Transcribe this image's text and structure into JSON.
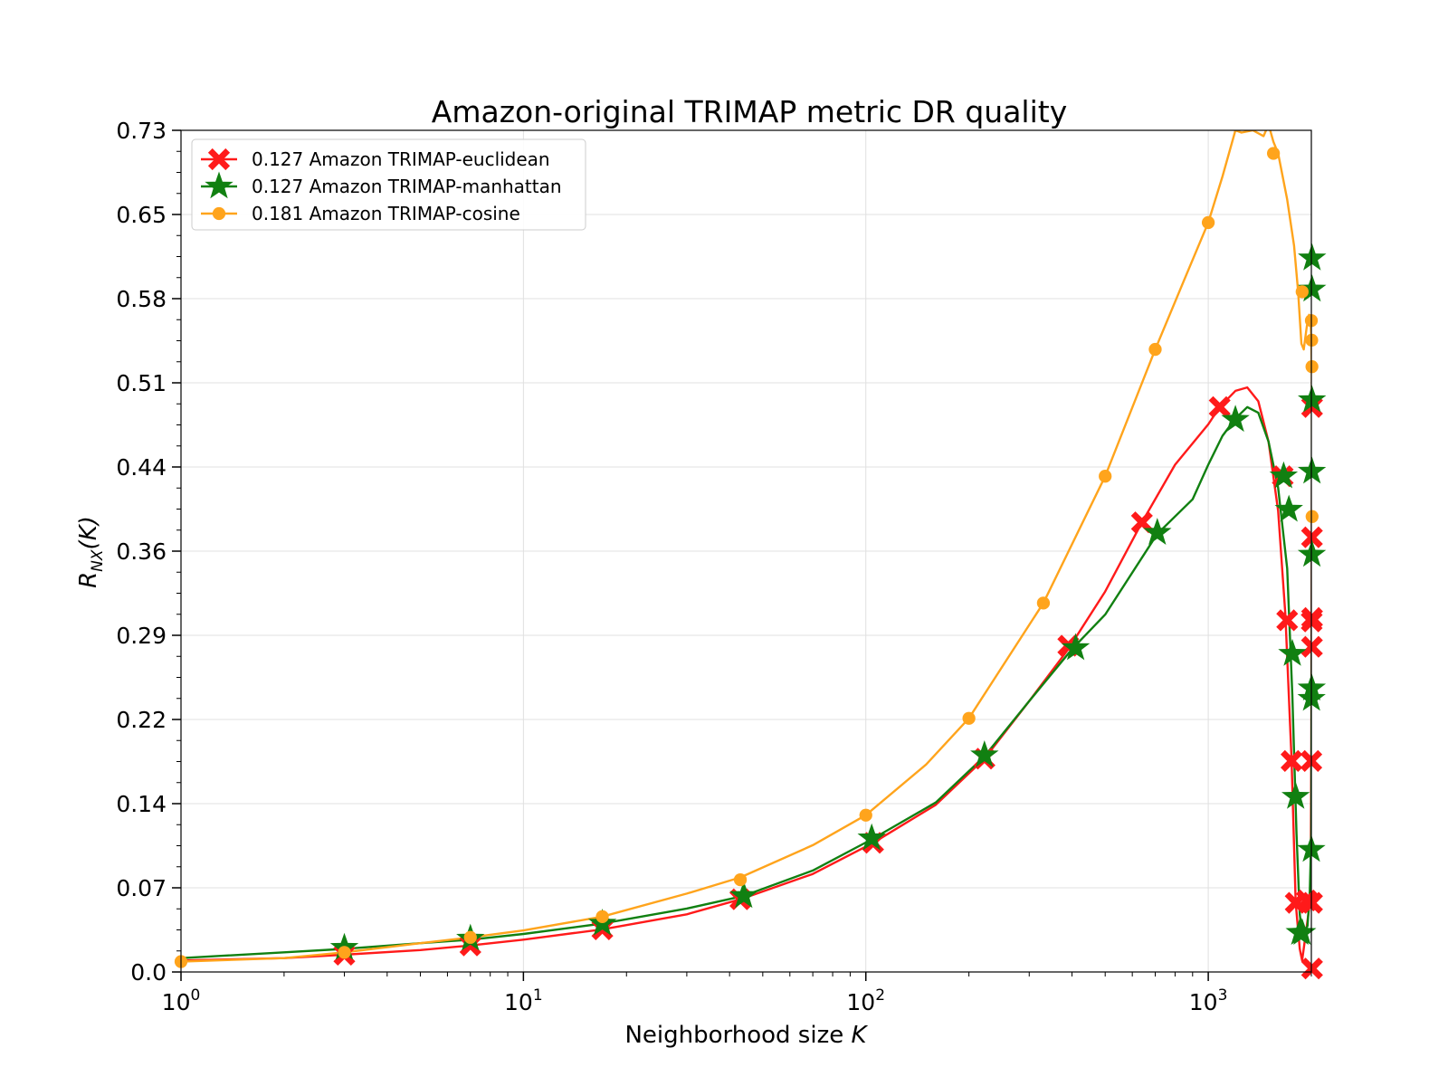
{
  "chart_data": {
    "type": "line",
    "title": "Amazon-original TRIMAP metric DR quality",
    "xlabel": {
      "prefix": "Neighborhood size ",
      "var": "K"
    },
    "ylabel": {
      "main": "R",
      "sub": "NX",
      "arg": "(K)"
    },
    "xscale": "log",
    "xlim": [
      1,
      2000
    ],
    "ylim": [
      0.0,
      0.73
    ],
    "yticks": [
      "0.0",
      "0.07",
      "0.14",
      "0.22",
      "0.29",
      "0.36",
      "0.44",
      "0.51",
      "0.58",
      "0.65",
      "0.73"
    ],
    "xticks": [
      {
        "base": "10",
        "exp": "0",
        "value": 1
      },
      {
        "base": "10",
        "exp": "1",
        "value": 10
      },
      {
        "base": "10",
        "exp": "2",
        "value": 100
      },
      {
        "base": "10",
        "exp": "3",
        "value": 1000
      }
    ],
    "grid": true,
    "legend_position": "top-left",
    "series": [
      {
        "name": "0.127 Amazon TRIMAP-euclidean",
        "color": "#ff1a1a",
        "marker": "x-filled",
        "x": [
          1,
          2,
          3,
          5,
          7,
          10,
          17,
          30,
          43,
          70,
          105,
          160,
          222,
          300,
          390,
          500,
          640,
          800,
          1000,
          1080,
          1200,
          1300,
          1400,
          1500,
          1600,
          1680,
          1750,
          1800,
          1850,
          1880,
          1910,
          1940,
          1970,
          1990,
          2000,
          2006,
          2010
        ],
        "y": [
          0.01,
          0.012,
          0.015,
          0.019,
          0.023,
          0.028,
          0.037,
          0.05,
          0.063,
          0.085,
          0.112,
          0.145,
          0.185,
          0.235,
          0.28,
          0.33,
          0.39,
          0.44,
          0.475,
          0.49,
          0.504,
          0.507,
          0.495,
          0.46,
          0.4,
          0.31,
          0.185,
          0.06,
          0.02,
          0.01,
          0.025,
          0.04,
          0.055,
          0.06,
          0.2,
          0.38,
          0.49
        ],
        "markers_x": [
          3,
          7,
          17,
          43,
          105,
          222,
          390,
          640,
          1080,
          1650,
          1700,
          1750,
          1800,
          1940,
          2000,
          2005,
          2008,
          2008,
          2010,
          2010,
          2010,
          2010
        ],
        "markers_y": [
          0.015,
          0.023,
          0.037,
          0.063,
          0.112,
          0.185,
          0.283,
          0.39,
          0.49,
          0.43,
          0.305,
          0.183,
          0.06,
          0.062,
          0.183,
          0.304,
          0.282,
          0.377,
          0.49,
          0.307,
          0.003,
          0.06
        ]
      },
      {
        "name": "0.127 Amazon TRIMAP-manhattan",
        "color": "#118011",
        "marker": "star",
        "x": [
          1,
          2,
          3,
          5,
          7,
          10,
          17,
          30,
          44,
          70,
          104,
          160,
          222,
          300,
          400,
          500,
          710,
          900,
          1000,
          1100,
          1200,
          1300,
          1400,
          1500,
          1600,
          1700,
          1760,
          1810,
          1850,
          1880,
          1910,
          1950,
          1980,
          2000,
          2006,
          2010
        ],
        "y": [
          0.012,
          0.017,
          0.02,
          0.025,
          0.028,
          0.033,
          0.042,
          0.055,
          0.066,
          0.088,
          0.115,
          0.147,
          0.187,
          0.235,
          0.28,
          0.31,
          0.38,
          0.41,
          0.44,
          0.465,
          0.48,
          0.49,
          0.485,
          0.46,
          0.42,
          0.35,
          0.24,
          0.12,
          0.05,
          0.034,
          0.035,
          0.04,
          0.07,
          0.12,
          0.3,
          0.6
        ],
        "markers_x": [
          3,
          7,
          17,
          44,
          104,
          222,
          410,
          710,
          1200,
          1660,
          1720,
          1760,
          1800,
          1850,
          1880,
          2000,
          2003,
          2005,
          2007,
          2008,
          2009,
          2010,
          2010
        ],
        "markers_y": [
          0.021,
          0.029,
          0.042,
          0.066,
          0.116,
          0.188,
          0.281,
          0.381,
          0.479,
          0.43,
          0.401,
          0.276,
          0.152,
          0.034,
          0.034,
          0.106,
          0.237,
          0.246,
          0.362,
          0.434,
          0.496,
          0.592,
          0.619
        ]
      },
      {
        "name": "0.181 Amazon TRIMAP-cosine",
        "color": "#ffa41c",
        "marker": "circle",
        "x": [
          1,
          2,
          3,
          5,
          7,
          10,
          17,
          30,
          43,
          70,
          100,
          150,
          200,
          330,
          500,
          700,
          850,
          1000,
          1100,
          1200,
          1250,
          1350,
          1450,
          1500,
          1550,
          1600,
          1700,
          1780,
          1830,
          1870,
          1900,
          1940,
          1970,
          1990,
          2000,
          2006,
          2010
        ],
        "y": [
          0.009,
          0.012,
          0.017,
          0.025,
          0.03,
          0.036,
          0.048,
          0.068,
          0.082,
          0.11,
          0.136,
          0.18,
          0.22,
          0.32,
          0.43,
          0.54,
          0.6,
          0.65,
          0.69,
          0.73,
          0.728,
          0.73,
          0.725,
          0.735,
          0.72,
          0.71,
          0.67,
          0.63,
          0.59,
          0.545,
          0.54,
          0.56,
          0.57,
          0.565,
          0.55,
          0.52,
          0.4
        ],
        "markers_x": [
          1,
          3,
          7,
          17,
          43,
          100,
          200,
          330,
          500,
          700,
          1000,
          1550,
          1880,
          2000,
          2005,
          2008,
          2010
        ],
        "markers_y": [
          0.009,
          0.017,
          0.03,
          0.048,
          0.08,
          0.136,
          0.22,
          0.32,
          0.43,
          0.54,
          0.65,
          0.71,
          0.59,
          0.565,
          0.548,
          0.525,
          0.395
        ]
      }
    ]
  }
}
